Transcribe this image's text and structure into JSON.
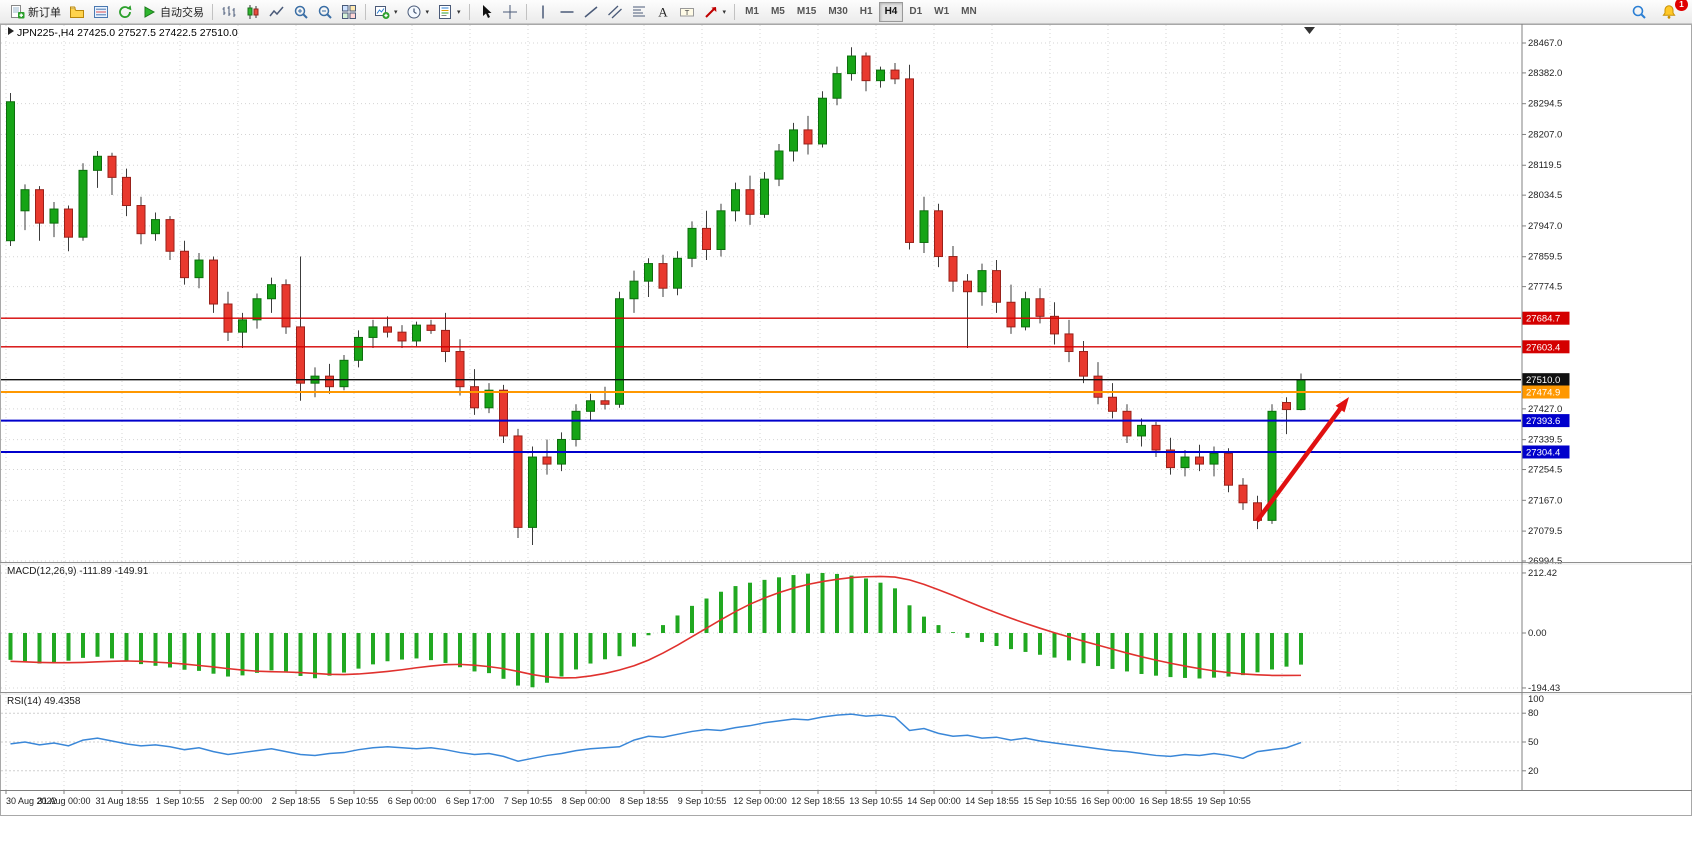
{
  "toolbar": {
    "new_order_label": "新订单",
    "autotrading_label": "自动交易",
    "timeframes": [
      "M1",
      "M5",
      "M15",
      "M30",
      "H1",
      "H4",
      "D1",
      "W1",
      "MN"
    ],
    "active_timeframe": "H4",
    "notification_count": "1"
  },
  "chart": {
    "title": "JPN225-,H4 27425.0 27527.5 27422.5 27510.0",
    "symbol": "JPN225-",
    "period": "H4",
    "ohlc": {
      "open": "27425.0",
      "high": "27527.5",
      "low": "27422.5",
      "close": "27510.0"
    }
  },
  "chart_data": {
    "type": "candlestick",
    "symbol": "JPN225-",
    "timeframe": "H4",
    "up_color": "#16a416",
    "down_color": "#e8392e",
    "price_axis": {
      "max": 28467.0,
      "min": 26994.5,
      "ticks": [
        28467.0,
        28382.0,
        28294.5,
        28207.0,
        28119.5,
        28034.5,
        27947.0,
        27859.5,
        27774.5,
        27427.0,
        27339.5,
        27254.5,
        27167.0,
        27079.5,
        26994.5
      ]
    },
    "time_axis": [
      "30 Aug 2022",
      "31 Aug 00:00",
      "31 Aug 18:55",
      "1 Sep 10:55",
      "2 Sep 00:00",
      "2 Sep 18:55",
      "5 Sep 10:55",
      "6 Sep 00:00",
      "6 Sep 17:00",
      "7 Sep 10:55",
      "8 Sep 00:00",
      "8 Sep 18:55",
      "9 Sep 10:55",
      "12 Sep 00:00",
      "12 Sep 18:55",
      "13 Sep 10:55",
      "14 Sep 00:00",
      "14 Sep 18:55",
      "15 Sep 10:55",
      "16 Sep 00:00",
      "16 Sep 18:55",
      "19 Sep 10:55"
    ],
    "candles": [
      [
        27905,
        28325,
        27890,
        28300
      ],
      [
        27990,
        28065,
        27935,
        28050
      ],
      [
        28050,
        28060,
        27905,
        27955
      ],
      [
        27955,
        28015,
        27915,
        27995
      ],
      [
        27995,
        28005,
        27875,
        27915
      ],
      [
        27915,
        28125,
        27905,
        28105
      ],
      [
        28105,
        28160,
        28055,
        28145
      ],
      [
        28145,
        28155,
        28035,
        28085
      ],
      [
        28085,
        28110,
        27975,
        28005
      ],
      [
        28005,
        28030,
        27895,
        27925
      ],
      [
        27925,
        27985,
        27905,
        27965
      ],
      [
        27965,
        27975,
        27850,
        27875
      ],
      [
        27875,
        27905,
        27780,
        27800
      ],
      [
        27800,
        27870,
        27770,
        27850
      ],
      [
        27850,
        27860,
        27700,
        27725
      ],
      [
        27725,
        27760,
        27620,
        27645
      ],
      [
        27645,
        27700,
        27600,
        27680
      ],
      [
        27680,
        27755,
        27655,
        27740
      ],
      [
        27740,
        27800,
        27700,
        27780
      ],
      [
        27780,
        27795,
        27640,
        27660
      ],
      [
        27660,
        27860,
        27450,
        27500
      ],
      [
        27500,
        27545,
        27460,
        27520
      ],
      [
        27520,
        27555,
        27470,
        27490
      ],
      [
        27490,
        27580,
        27480,
        27565
      ],
      [
        27565,
        27650,
        27545,
        27630
      ],
      [
        27630,
        27680,
        27600,
        27660
      ],
      [
        27660,
        27690,
        27630,
        27645
      ],
      [
        27645,
        27665,
        27600,
        27620
      ],
      [
        27620,
        27675,
        27605,
        27665
      ],
      [
        27665,
        27680,
        27640,
        27650
      ],
      [
        27650,
        27700,
        27560,
        27590
      ],
      [
        27590,
        27625,
        27465,
        27490
      ],
      [
        27490,
        27540,
        27410,
        27430
      ],
      [
        27430,
        27500,
        27415,
        27480
      ],
      [
        27480,
        27495,
        27330,
        27350
      ],
      [
        27350,
        27370,
        27060,
        27090
      ],
      [
        27090,
        27320,
        27040,
        27290
      ],
      [
        27290,
        27340,
        27240,
        27270
      ],
      [
        27270,
        27360,
        27250,
        27340
      ],
      [
        27340,
        27440,
        27320,
        27420
      ],
      [
        27420,
        27470,
        27395,
        27450
      ],
      [
        27450,
        27490,
        27425,
        27440
      ],
      [
        27440,
        27760,
        27430,
        27740
      ],
      [
        27740,
        27820,
        27700,
        27790
      ],
      [
        27790,
        27855,
        27745,
        27840
      ],
      [
        27840,
        27865,
        27745,
        27770
      ],
      [
        27770,
        27875,
        27750,
        27855
      ],
      [
        27855,
        27960,
        27830,
        27940
      ],
      [
        27940,
        27990,
        27850,
        27880
      ],
      [
        27880,
        28010,
        27860,
        27990
      ],
      [
        27990,
        28070,
        27960,
        28050
      ],
      [
        28050,
        28090,
        27950,
        27980
      ],
      [
        27980,
        28100,
        27970,
        28080
      ],
      [
        28080,
        28180,
        28060,
        28160
      ],
      [
        28160,
        28240,
        28130,
        28220
      ],
      [
        28220,
        28260,
        28150,
        28180
      ],
      [
        28180,
        28330,
        28170,
        28310
      ],
      [
        28310,
        28400,
        28290,
        28380
      ],
      [
        28380,
        28455,
        28360,
        28430
      ],
      [
        28430,
        28440,
        28330,
        28360
      ],
      [
        28360,
        28400,
        28340,
        28390
      ],
      [
        28390,
        28410,
        28350,
        28365
      ],
      [
        28365,
        28405,
        27880,
        27900
      ],
      [
        27900,
        28030,
        27870,
        27990
      ],
      [
        27990,
        28010,
        27830,
        27860
      ],
      [
        27860,
        27890,
        27760,
        27790
      ],
      [
        27790,
        27810,
        27600,
        27760
      ],
      [
        27760,
        27840,
        27720,
        27820
      ],
      [
        27820,
        27850,
        27700,
        27730
      ],
      [
        27730,
        27780,
        27640,
        27660
      ],
      [
        27660,
        27760,
        27650,
        27740
      ],
      [
        27740,
        27770,
        27670,
        27690
      ],
      [
        27690,
        27730,
        27610,
        27640
      ],
      [
        27640,
        27680,
        27560,
        27590
      ],
      [
        27590,
        27620,
        27500,
        27520
      ],
      [
        27520,
        27560,
        27440,
        27460
      ],
      [
        27460,
        27500,
        27400,
        27420
      ],
      [
        27420,
        27440,
        27330,
        27350
      ],
      [
        27350,
        27400,
        27320,
        27380
      ],
      [
        27380,
        27390,
        27290,
        27310
      ],
      [
        27310,
        27345,
        27240,
        27260
      ],
      [
        27260,
        27310,
        27235,
        27290
      ],
      [
        27290,
        27325,
        27250,
        27270
      ],
      [
        27270,
        27320,
        27235,
        27300
      ],
      [
        27300,
        27315,
        27190,
        27210
      ],
      [
        27210,
        27230,
        27140,
        27160
      ],
      [
        27160,
        27180,
        27085,
        27110
      ],
      [
        27110,
        27440,
        27100,
        27420
      ],
      [
        27445,
        27460,
        27355,
        27425
      ],
      [
        27425,
        27527.5,
        27422.5,
        27510
      ]
    ],
    "h_lines": [
      {
        "price": 27684.7,
        "label": "27684.7",
        "color": "#d40000",
        "width": 1.3
      },
      {
        "price": 27603.4,
        "label": "27603.4",
        "color": "#d40000",
        "width": 1.3
      },
      {
        "price": 27510.0,
        "label": "27510.0",
        "color": "#111111",
        "width": 1.4
      },
      {
        "price": 27474.9,
        "label": "27474.9",
        "color": "#ff9800",
        "width": 2
      },
      {
        "price": 27393.6,
        "label": "27393.6",
        "color": "#0000cc",
        "width": 2
      },
      {
        "price": 27304.4,
        "label": "27304.4",
        "color": "#0000cc",
        "width": 2
      }
    ],
    "annotation_arrow": {
      "from": [
        1257,
        521
      ],
      "to": [
        1349,
        397
      ],
      "color": "#e01010"
    },
    "macd": {
      "label": "MACD(12,26,9) -111.89 -149.91",
      "axis": [
        212.42,
        0,
        -194.43
      ],
      "histogram_color": "#21a821",
      "signal_color": "#e0312e",
      "main": [
        -95,
        -100,
        -108,
        -104,
        -98,
        -88,
        -84,
        -90,
        -100,
        -110,
        -116,
        -122,
        -130,
        -134,
        -144,
        -154,
        -150,
        -141,
        -132,
        -136,
        -152,
        -160,
        -151,
        -140,
        -126,
        -111,
        -100,
        -94,
        -90,
        -96,
        -106,
        -121,
        -136,
        -142,
        -162,
        -186,
        -192,
        -176,
        -154,
        -129,
        -108,
        -93,
        -82,
        -48,
        -8,
        28,
        62,
        96,
        122,
        146,
        166,
        178,
        188,
        197,
        205,
        210,
        212.4,
        209,
        203,
        193,
        178,
        158,
        98,
        58,
        28,
        3,
        -17,
        -32,
        -46,
        -57,
        -67,
        -77,
        -87,
        -97,
        -107,
        -117,
        -127,
        -136,
        -145,
        -151,
        -156,
        -159,
        -161,
        -158,
        -154,
        -149,
        -139,
        -129,
        -119,
        -111.89
      ],
      "signal": [
        -100,
        -102,
        -104,
        -105,
        -105,
        -104,
        -102,
        -100,
        -99,
        -100,
        -103,
        -106,
        -110,
        -115,
        -120,
        -126,
        -131,
        -135,
        -137,
        -138,
        -140,
        -143,
        -146,
        -147,
        -145,
        -141,
        -136,
        -130,
        -123,
        -117,
        -112,
        -111,
        -114,
        -119,
        -126,
        -136,
        -147,
        -155,
        -159,
        -158,
        -152,
        -143,
        -131,
        -116,
        -96,
        -71,
        -43,
        -13,
        17,
        47,
        76,
        102,
        124,
        143,
        159,
        172,
        182,
        190,
        196,
        199,
        200,
        198,
        188,
        172,
        153,
        133,
        112,
        91,
        71,
        52,
        34,
        17,
        1,
        -14,
        -29,
        -43,
        -57,
        -71,
        -84,
        -96,
        -107,
        -117,
        -126,
        -134,
        -140,
        -145,
        -148,
        -150,
        -150,
        -149.91
      ]
    },
    "rsi": {
      "label": "RSI(14) 49.4358",
      "levels": [
        80,
        50,
        20
      ],
      "axis_labels": [
        "100",
        "80",
        "50",
        "20"
      ],
      "line_color": "#3a87d8",
      "values": [
        48,
        50,
        47,
        49,
        46,
        52,
        54,
        51,
        48,
        46,
        47,
        45,
        42,
        44,
        40,
        37,
        39,
        41,
        43,
        40,
        37,
        36,
        38,
        39,
        42,
        44,
        45,
        44,
        43,
        44,
        42,
        39,
        37,
        38,
        35,
        30,
        33,
        36,
        38,
        41,
        43,
        44,
        45,
        52,
        56,
        55,
        58,
        61,
        63,
        62,
        65,
        67,
        70,
        72,
        74,
        73,
        76,
        78,
        79,
        77,
        78,
        76,
        62,
        64,
        59,
        56,
        57,
        54,
        55,
        52,
        54,
        51,
        49,
        47,
        45,
        43,
        41,
        40,
        38,
        36,
        35,
        37,
        36,
        38,
        36,
        33,
        40,
        42,
        44,
        49.44
      ]
    }
  }
}
